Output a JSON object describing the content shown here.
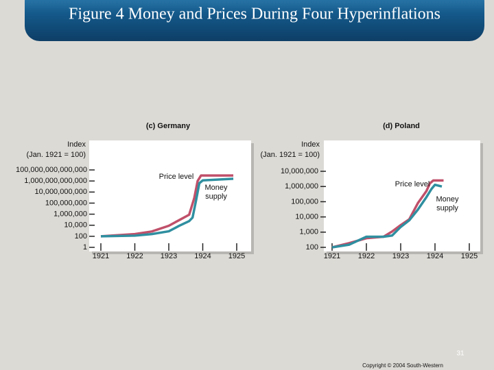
{
  "title": "Figure 4 Money and Prices During Four Hyperinflations",
  "page_number": "31",
  "copyright": "Copyright © 2004 South-Western",
  "chart_data": [
    {
      "type": "line",
      "title": "(c) Germany",
      "ylabel": [
        "Index",
        "(Jan. 1921 = 100)"
      ],
      "log_y": true,
      "xlim": [
        1921,
        1925
      ],
      "xticks": [
        1921,
        1922,
        1923,
        1924,
        1925
      ],
      "ylim": [
        1,
        100000000000000
      ],
      "yticks": [
        1,
        100,
        {
          "value": 10000,
          "label": "10,000"
        },
        {
          "value": 1000000,
          "label": "1,000,000"
        },
        {
          "value": 100000000,
          "label": "100,000,000"
        },
        {
          "value": 10000000000,
          "label": "10,000,000,000"
        },
        {
          "value": 1000000000000,
          "label": "1,000,000,000,000"
        },
        {
          "value": 100000000000000,
          "label": "100,000,000,000,000"
        }
      ],
      "series": [
        {
          "name": "Price level",
          "color": "#c0506a",
          "x": [
            1921,
            1922,
            1922.5,
            1923,
            1923.3,
            1923.6,
            1923.75,
            1923.85,
            1923.95,
            1924.9
          ],
          "values": [
            100,
            250,
            750,
            8000,
            80000,
            800000,
            800000000,
            1000000000000,
            10000000000000,
            10000000000000
          ]
        },
        {
          "name": "Money supply",
          "color": "#2f8fa0",
          "x": [
            1921,
            1922,
            1922.5,
            1923,
            1923.3,
            1923.6,
            1923.7,
            1923.8,
            1923.9,
            1924,
            1924.9
          ],
          "values": [
            100,
            130,
            250,
            800,
            7500,
            56000,
            240000,
            250000000,
            400000000000,
            1300000000000,
            2500000000000
          ]
        }
      ]
    },
    {
      "type": "line",
      "title": "(d) Poland",
      "ylabel": [
        "Index",
        "(Jan. 1921 = 100)"
      ],
      "log_y": true,
      "xlim": [
        1921,
        1925
      ],
      "xticks": [
        1921,
        1922,
        1923,
        1924,
        1925
      ],
      "ylim": [
        100,
        10000000
      ],
      "yticks": [
        100,
        {
          "value": 1000,
          "label": "1,000"
        },
        {
          "value": 10000,
          "label": "10,000"
        },
        {
          "value": 100000,
          "label": "100,000"
        },
        {
          "value": 1000000,
          "label": "1,000,000"
        },
        {
          "value": 10000000,
          "label": "10,000,000"
        }
      ],
      "series": [
        {
          "name": "Price level",
          "color": "#c0506a",
          "x": [
            1921,
            1921.5,
            1922,
            1922.5,
            1922.75,
            1923,
            1923.25,
            1923.5,
            1923.75,
            1923.85,
            1923.95,
            1924.25
          ],
          "values": [
            100,
            190,
            400,
            500,
            1100,
            2900,
            7000,
            80000,
            500000,
            1600000,
            2500000,
            2500000
          ]
        },
        {
          "name": "Money supply",
          "color": "#2f8fa0",
          "x": [
            1921,
            1921.5,
            1922,
            1922.5,
            1922.75,
            1923,
            1923.25,
            1923.5,
            1923.75,
            1923.9,
            1924,
            1924.2
          ],
          "values": [
            100,
            150,
            500,
            500,
            600,
            2200,
            6000,
            30000,
            200000,
            700000,
            1300000,
            1000000
          ]
        }
      ]
    }
  ]
}
